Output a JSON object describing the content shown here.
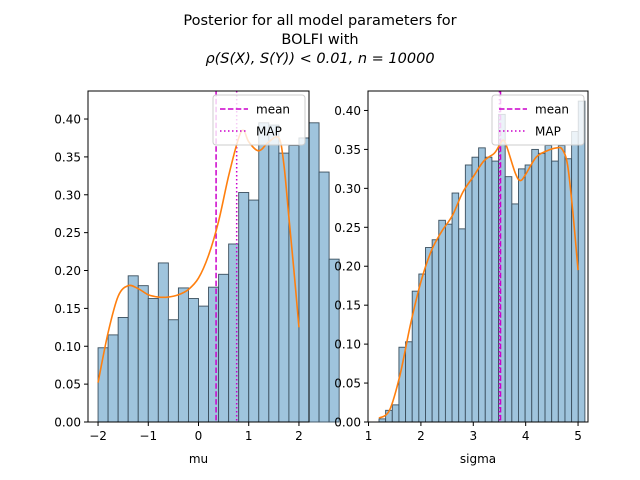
{
  "figure": {
    "title_lines": [
      "Posterior for all model parameters for",
      "BOLFI with",
      "ρ(S(X), S(Y)) < 0.01, n = 10000"
    ]
  },
  "colors": {
    "bar_fill": "#9fc4dd",
    "bar_edge": "#3b4f5e",
    "kde": "#ff7f0e",
    "mean_line": "#cc00cc",
    "map_line": "#cc00cc"
  },
  "chart_data": [
    {
      "type": "histogram",
      "xlabel": "mu",
      "ylabel": "",
      "xlim": [
        -2.2,
        2.2
      ],
      "ylim": [
        0,
        0.437
      ],
      "xticks": [
        -2,
        -1,
        0,
        1,
        2
      ],
      "yticks": [
        0.0,
        0.05,
        0.1,
        0.15,
        0.2,
        0.25,
        0.3,
        0.35,
        0.4
      ],
      "ytick_labels": [
        "0.00",
        "0.05",
        "0.10",
        "0.15",
        "0.20",
        "0.25",
        "0.30",
        "0.35",
        "0.40"
      ],
      "bin_start": -2.0,
      "bin_width": 0.2,
      "values": [
        0.098,
        0.115,
        0.138,
        0.193,
        0.18,
        0.163,
        0.21,
        0.135,
        0.177,
        0.163,
        0.153,
        0.178,
        0.195,
        0.235,
        0.303,
        0.293,
        0.395,
        0.392,
        0.355,
        0.365,
        0.375,
        0.395,
        0.33,
        0.215
      ],
      "mean": 0.35,
      "map": 0.76,
      "kde": {
        "x": [
          -2.0,
          -1.8,
          -1.6,
          -1.4,
          -1.2,
          -1.0,
          -0.8,
          -0.6,
          -0.4,
          -0.2,
          0.0,
          0.2,
          0.4,
          0.6,
          0.8,
          0.9,
          1.0,
          1.2,
          1.4,
          1.6,
          1.7,
          1.8,
          1.9,
          2.0
        ],
        "y": [
          0.052,
          0.118,
          0.166,
          0.18,
          0.176,
          0.168,
          0.165,
          0.165,
          0.168,
          0.175,
          0.19,
          0.22,
          0.265,
          0.325,
          0.375,
          0.385,
          0.37,
          0.358,
          0.37,
          0.375,
          0.34,
          0.27,
          0.2,
          0.125
        ]
      },
      "legend": {
        "location": "top-right",
        "entries": [
          "mean",
          "MAP"
        ]
      }
    },
    {
      "type": "histogram",
      "xlabel": "sigma",
      "ylabel": "",
      "xlim": [
        0.99,
        5.19
      ],
      "ylim": [
        0,
        0.425
      ],
      "xticks": [
        1,
        2,
        3,
        4,
        5
      ],
      "yticks": [
        0.0,
        0.05,
        0.1,
        0.15,
        0.2,
        0.25,
        0.3,
        0.35,
        0.4
      ],
      "ytick_labels": [
        "0.00",
        "0.05",
        "0.10",
        "0.15",
        "0.20",
        "0.25",
        "0.30",
        "0.35",
        "0.40"
      ],
      "bin_start": 1.2,
      "bin_width": 0.1268,
      "values": [
        0.004,
        0.015,
        0.022,
        0.096,
        0.103,
        0.168,
        0.19,
        0.224,
        0.234,
        0.259,
        0.254,
        0.294,
        0.248,
        0.33,
        0.34,
        0.352,
        0.34,
        0.335,
        0.395,
        0.315,
        0.28,
        0.325,
        0.33,
        0.35,
        0.345,
        0.355,
        0.335,
        0.355,
        0.338,
        0.373,
        0.412
      ],
      "mean": 3.52,
      "map": 3.5,
      "kde": {
        "x": [
          1.2,
          1.4,
          1.6,
          1.8,
          2.0,
          2.2,
          2.4,
          2.6,
          2.8,
          3.0,
          3.2,
          3.4,
          3.5,
          3.6,
          3.8,
          3.9,
          4.0,
          4.2,
          4.4,
          4.6,
          4.7,
          4.8,
          4.9,
          5.0
        ],
        "y": [
          0.005,
          0.015,
          0.06,
          0.125,
          0.18,
          0.22,
          0.245,
          0.265,
          0.295,
          0.315,
          0.335,
          0.345,
          0.355,
          0.36,
          0.32,
          0.31,
          0.318,
          0.34,
          0.348,
          0.352,
          0.35,
          0.33,
          0.27,
          0.195
        ]
      },
      "legend": {
        "location": "top-right",
        "entries": [
          "mean",
          "MAP"
        ]
      }
    }
  ]
}
